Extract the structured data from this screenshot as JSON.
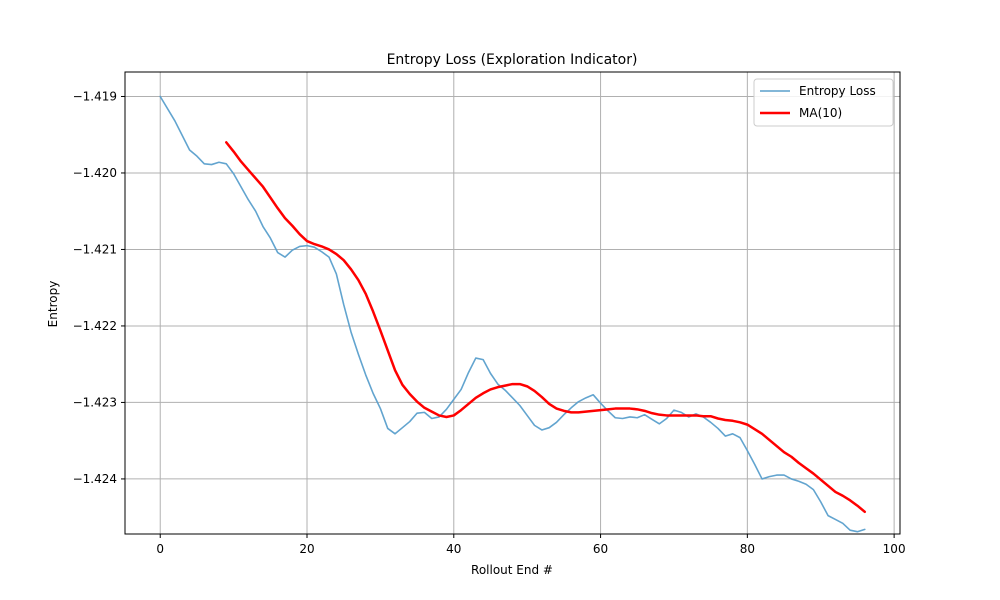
{
  "chart_data": {
    "type": "line",
    "title": "Entropy Loss (Exploration Indicator)",
    "xlabel": "Rollout End #",
    "ylabel": "Entropy",
    "xlim": [
      -4.8,
      100.8
    ],
    "ylim": [
      -1.42472,
      -1.41868
    ],
    "xticks": [
      0,
      20,
      40,
      60,
      80,
      100
    ],
    "xtick_labels": [
      "0",
      "20",
      "40",
      "60",
      "80",
      "100"
    ],
    "yticks": [
      -1.424,
      -1.423,
      -1.422,
      -1.421,
      -1.42,
      -1.419
    ],
    "ytick_labels": [
      "−1.424",
      "−1.423",
      "−1.422",
      "−1.421",
      "−1.420",
      "−1.419"
    ],
    "grid": true,
    "legend_position": "top-right",
    "series": [
      {
        "name": "Entropy Loss",
        "color": "#5a9fcc",
        "x": [
          0,
          2,
          4,
          5,
          6,
          7,
          8,
          9,
          10,
          12,
          13,
          14,
          15,
          16,
          17,
          18,
          19,
          20,
          21,
          22,
          23,
          24,
          25,
          26,
          27,
          28,
          29,
          30,
          31,
          32,
          33,
          34,
          35,
          36,
          37,
          38,
          39,
          40,
          41,
          42,
          43,
          44,
          45,
          46,
          47,
          48,
          49,
          50,
          51,
          52,
          53,
          54,
          55,
          56,
          57,
          58,
          59,
          60,
          61,
          62,
          63,
          64,
          65,
          66,
          67,
          68,
          69,
          70,
          71,
          72,
          73,
          74,
          75,
          76,
          77,
          78,
          79,
          80,
          81,
          82,
          83,
          84,
          85,
          86,
          87,
          88,
          89,
          90,
          91,
          92,
          93,
          94,
          95,
          96
        ],
        "y": [
          -1.419,
          -1.41932,
          -1.4197,
          -1.41978,
          -1.41988,
          -1.41989,
          -1.41986,
          -1.41988,
          -1.42001,
          -1.42035,
          -1.4205,
          -1.4207,
          -1.42085,
          -1.42104,
          -1.4211,
          -1.42101,
          -1.42096,
          -1.42095,
          -1.42097,
          -1.42103,
          -1.4211,
          -1.42132,
          -1.42172,
          -1.42208,
          -1.42237,
          -1.42264,
          -1.42288,
          -1.42308,
          -1.42334,
          -1.42341,
          -1.42333,
          -1.42325,
          -1.42314,
          -1.42313,
          -1.42321,
          -1.42319,
          -1.42309,
          -1.42296,
          -1.42283,
          -1.42261,
          -1.42242,
          -1.42244,
          -1.42262,
          -1.42276,
          -1.42284,
          -1.42294,
          -1.42304,
          -1.42317,
          -1.4233,
          -1.42336,
          -1.42333,
          -1.42326,
          -1.42316,
          -1.42307,
          -1.42299,
          -1.42294,
          -1.4229,
          -1.42301,
          -1.42311,
          -1.4232,
          -1.42321,
          -1.42319,
          -1.4232,
          -1.42316,
          -1.42322,
          -1.42328,
          -1.42321,
          -1.4231,
          -1.42313,
          -1.42319,
          -1.42315,
          -1.42319,
          -1.42326,
          -1.42334,
          -1.42344,
          -1.42341,
          -1.42346,
          -1.42363,
          -1.42381,
          -1.424,
          -1.42397,
          -1.42395,
          -1.42395,
          -1.424,
          -1.42403,
          -1.42407,
          -1.42414,
          -1.4243,
          -1.42448,
          -1.42453,
          -1.42458,
          -1.42467,
          -1.42469,
          -1.42466
        ]
      },
      {
        "name": "MA(10)",
        "color": "#ff0000",
        "x": [
          9,
          10,
          11,
          12,
          13,
          14,
          15,
          16,
          17,
          18,
          19,
          20,
          21,
          22,
          23,
          24,
          25,
          26,
          27,
          28,
          29,
          30,
          31,
          32,
          33,
          34,
          35,
          36,
          37,
          38,
          39,
          40,
          41,
          42,
          43,
          44,
          45,
          46,
          47,
          48,
          49,
          50,
          51,
          52,
          53,
          54,
          55,
          56,
          57,
          58,
          59,
          60,
          61,
          62,
          63,
          64,
          65,
          66,
          67,
          68,
          69,
          70,
          71,
          72,
          73,
          74,
          75,
          76,
          77,
          78,
          79,
          80,
          81,
          82,
          83,
          84,
          85,
          86,
          87,
          88,
          89,
          90,
          91,
          92,
          93,
          94,
          95,
          96
        ],
        "y": [
          -1.4196,
          -1.41972,
          -1.41985,
          -1.41996,
          -1.42007,
          -1.42018,
          -1.42032,
          -1.42046,
          -1.42059,
          -1.42069,
          -1.4208,
          -1.42089,
          -1.42093,
          -1.42096,
          -1.421,
          -1.42106,
          -1.42114,
          -1.42126,
          -1.4214,
          -1.42158,
          -1.42181,
          -1.42206,
          -1.42232,
          -1.42258,
          -1.42277,
          -1.42289,
          -1.42299,
          -1.42307,
          -1.42312,
          -1.42317,
          -1.42319,
          -1.42317,
          -1.4231,
          -1.42302,
          -1.42294,
          -1.42288,
          -1.42283,
          -1.4228,
          -1.42278,
          -1.42276,
          -1.42276,
          -1.42279,
          -1.42285,
          -1.42293,
          -1.42302,
          -1.42308,
          -1.42311,
          -1.42313,
          -1.42313,
          -1.42312,
          -1.42311,
          -1.4231,
          -1.42309,
          -1.42308,
          -1.42308,
          -1.42308,
          -1.42309,
          -1.42311,
          -1.42314,
          -1.42316,
          -1.42317,
          -1.42317,
          -1.42317,
          -1.42317,
          -1.42317,
          -1.42318,
          -1.42318,
          -1.42321,
          -1.42323,
          -1.42324,
          -1.42326,
          -1.42329,
          -1.42335,
          -1.42341,
          -1.42349,
          -1.42357,
          -1.42365,
          -1.42371,
          -1.42379,
          -1.42386,
          -1.42393,
          -1.42401,
          -1.42409,
          -1.42417,
          -1.42422,
          -1.42428,
          -1.42435,
          -1.42443
        ]
      }
    ]
  },
  "style": {
    "grid_color": "#b0b0b0",
    "axis_color": "#000000"
  }
}
